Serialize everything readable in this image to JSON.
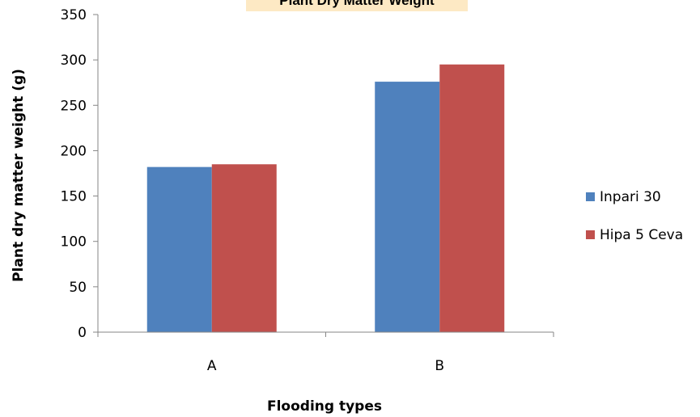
{
  "chart_data": {
    "type": "bar",
    "title": "Plant Dry Matter Weight",
    "xlabel": "Flooding types",
    "ylabel": "Plant dry matter weight (g)",
    "categories": [
      "A",
      "B"
    ],
    "series": [
      {
        "name": "Inpari 30",
        "color": "#4f81bd",
        "values": [
          182,
          276
        ]
      },
      {
        "name": "Hipa 5 Ceva",
        "color": "#c0504d",
        "values": [
          185,
          295
        ]
      }
    ],
    "ylim": [
      0,
      350
    ],
    "yticks": [
      0,
      50,
      100,
      150,
      200,
      250,
      300,
      350
    ],
    "grid": false,
    "legend": "right"
  }
}
